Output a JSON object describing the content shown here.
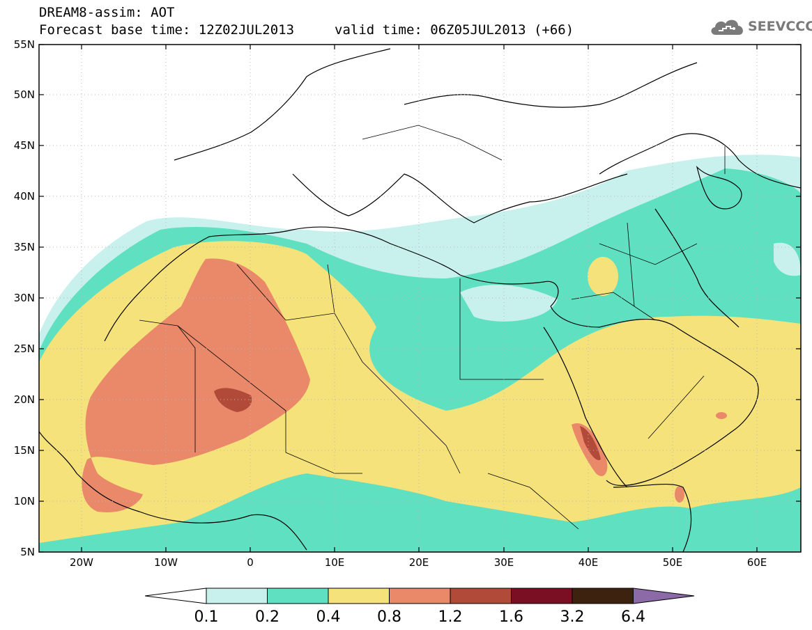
{
  "title": {
    "line1": "DREAM8-assim: AOT",
    "line2": "Forecast base time: 12Z02JUL2013",
    "valid": "valid time: 06Z05JUL2013 (+66)"
  },
  "logo": {
    "text": "SEEVCCC",
    "icon": "cloud-logo-icon"
  },
  "axes": {
    "lat_labels": [
      "55N",
      "50N",
      "45N",
      "40N",
      "35N",
      "30N",
      "25N",
      "20N",
      "15N",
      "10N",
      "5N"
    ],
    "lon_labels": [
      "20W",
      "10W",
      "0",
      "10E",
      "20E",
      "30E",
      "40E",
      "50E",
      "60E"
    ]
  },
  "colorbar": {
    "labels": [
      "0.1",
      "0.2",
      "0.4",
      "0.8",
      "1.2",
      "1.6",
      "3.2",
      "6.4"
    ],
    "colors": [
      "#ffffff",
      "#c8f0ec",
      "#5fe0c0",
      "#f5e27a",
      "#e9896a",
      "#b24a3a",
      "#7a0e22",
      "#3d2210",
      "#8c6aa8"
    ]
  }
}
